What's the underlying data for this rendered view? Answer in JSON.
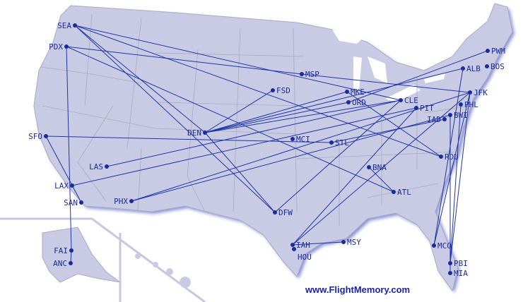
{
  "colors": {
    "land": "#c9cbe4",
    "border": "#a9abbf",
    "route": "#1f34a8",
    "airport": "#1b2c9a",
    "water": "#ffffff",
    "coast_shadow": "#8a93d6"
  },
  "airports": [
    "SEA",
    "PDX",
    "SFO",
    "LAS",
    "LAX",
    "SAN",
    "PHX",
    "FAI",
    "ANC",
    "DEN",
    "FSD",
    "MSP",
    "MKE",
    "ORD",
    "MCI",
    "STL",
    "DFW",
    "BNA",
    "ATL",
    "IAH",
    "HOU",
    "MSY",
    "CLE",
    "PIT",
    "BWI",
    "IAD",
    "PHL",
    "JFK",
    "ALB",
    "BOS",
    "PWM",
    "RDU",
    "MCO",
    "PBI",
    "MIA"
  ],
  "routes": [
    [
      "SEA",
      "DEN"
    ],
    [
      "SEA",
      "DFW"
    ],
    [
      "SEA",
      "RDU"
    ],
    [
      "SEA",
      "CLE"
    ],
    [
      "PDX",
      "MSP"
    ],
    [
      "PDX",
      "ATL"
    ],
    [
      "PDX",
      "FAI"
    ],
    [
      "FAI",
      "ANC"
    ],
    [
      "SFO",
      "STL"
    ],
    [
      "SFO",
      "SAN"
    ],
    [
      "MSP",
      "JFK"
    ],
    [
      "DEN",
      "FSD"
    ],
    [
      "DEN",
      "MKE"
    ],
    [
      "DEN",
      "ORD"
    ],
    [
      "DEN",
      "CLE"
    ],
    [
      "DEN",
      "ALB"
    ],
    [
      "DEN",
      "DFW"
    ],
    [
      "LAS",
      "CLE"
    ],
    [
      "LAX",
      "PIT"
    ],
    [
      "PHX",
      "JFK"
    ],
    [
      "PHX",
      "BWI"
    ],
    [
      "MKE",
      "RDU"
    ],
    [
      "ORD",
      "PWM"
    ],
    [
      "IAH",
      "PIT"
    ],
    [
      "IAH",
      "JFK"
    ],
    [
      "IAH",
      "MSY"
    ],
    [
      "DFW",
      "CLE"
    ],
    [
      "BNA",
      "ATL"
    ],
    [
      "STL",
      "IAD"
    ],
    [
      "MCO",
      "ALB"
    ],
    [
      "MCO",
      "JFK"
    ],
    [
      "PBI",
      "JFK"
    ],
    [
      "PBI",
      "PHL"
    ],
    [
      "MIA",
      "BWI"
    ]
  ],
  "watermark": "www.FlightMemory.com"
}
